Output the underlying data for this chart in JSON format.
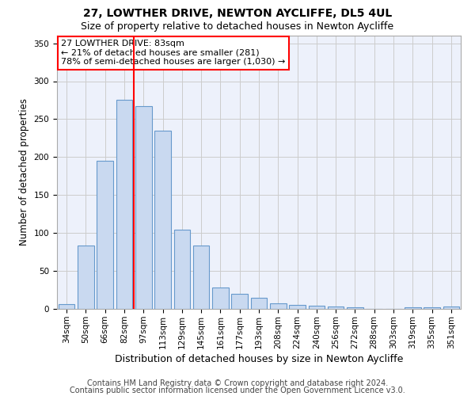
{
  "title1": "27, LOWTHER DRIVE, NEWTON AYCLIFFE, DL5 4UL",
  "title2": "Size of property relative to detached houses in Newton Aycliffe",
  "xlabel": "Distribution of detached houses by size in Newton Aycliffe",
  "ylabel": "Number of detached properties",
  "footnote1": "Contains HM Land Registry data © Crown copyright and database right 2024.",
  "footnote2": "Contains public sector information licensed under the Open Government Licence v3.0.",
  "categories": [
    "34sqm",
    "50sqm",
    "66sqm",
    "82sqm",
    "97sqm",
    "113sqm",
    "129sqm",
    "145sqm",
    "161sqm",
    "177sqm",
    "193sqm",
    "208sqm",
    "224sqm",
    "240sqm",
    "256sqm",
    "272sqm",
    "288sqm",
    "303sqm",
    "319sqm",
    "335sqm",
    "351sqm"
  ],
  "values": [
    6,
    84,
    195,
    275,
    267,
    235,
    104,
    84,
    28,
    20,
    15,
    7,
    5,
    4,
    3,
    2,
    0,
    0,
    2,
    2,
    3
  ],
  "bar_color": "#c9d9f0",
  "bar_edge_color": "#6699cc",
  "vline_color": "red",
  "vline_pos": 3.5,
  "annotation_text": "27 LOWTHER DRIVE: 83sqm\n← 21% of detached houses are smaller (281)\n78% of semi-detached houses are larger (1,030) →",
  "annotation_box_color": "white",
  "annotation_box_edge_color": "red",
  "ylim": [
    0,
    360
  ],
  "yticks": [
    0,
    50,
    100,
    150,
    200,
    250,
    300,
    350
  ],
  "grid_color": "#cccccc",
  "background_color": "#edf1fb",
  "title1_fontsize": 10,
  "title2_fontsize": 9,
  "xlabel_fontsize": 9,
  "ylabel_fontsize": 8.5,
  "tick_fontsize": 7.5,
  "annotation_fontsize": 8,
  "footnote_fontsize": 7
}
